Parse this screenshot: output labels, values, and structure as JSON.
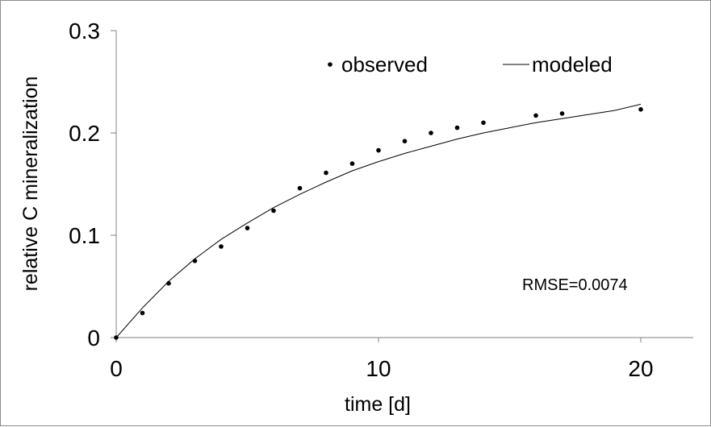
{
  "chart_data": {
    "type": "scatter",
    "xlabel": "time [d]",
    "ylabel": "relative C mineralization",
    "xlim": [
      0,
      22
    ],
    "ylim": [
      0,
      0.3
    ],
    "x_ticks": [
      0,
      10,
      20
    ],
    "x_tick_labels": [
      "0",
      "10",
      "20"
    ],
    "y_ticks": [
      0,
      0.1,
      0.2,
      0.3
    ],
    "y_tick_labels": [
      "0",
      "0.1",
      "0.2",
      "0.3"
    ],
    "grid": false,
    "legend_position": "top-center",
    "annotation": "RMSE=0.0074",
    "colors": {
      "points": "#000000",
      "line": "#000000",
      "axis": "#808080"
    },
    "series": [
      {
        "name": "observed",
        "kind": "scatter",
        "x": [
          0,
          1,
          2,
          3,
          4,
          5,
          6,
          7,
          8,
          9,
          10,
          11,
          12,
          13,
          14,
          16,
          17,
          20
        ],
        "y": [
          0.0,
          0.024,
          0.053,
          0.075,
          0.089,
          0.107,
          0.124,
          0.146,
          0.161,
          0.17,
          0.183,
          0.192,
          0.2,
          0.205,
          0.21,
          0.217,
          0.219,
          0.223
        ]
      },
      {
        "name": "modeled",
        "kind": "line",
        "x": [
          0,
          1,
          2,
          3,
          4,
          5,
          6,
          7,
          8,
          9,
          10,
          11,
          12,
          13,
          14,
          15,
          16,
          17,
          18,
          19,
          20
        ],
        "y": [
          0.0,
          0.029,
          0.055,
          0.077,
          0.096,
          0.112,
          0.127,
          0.14,
          0.152,
          0.163,
          0.172,
          0.18,
          0.187,
          0.194,
          0.2,
          0.205,
          0.21,
          0.214,
          0.218,
          0.222,
          0.228
        ]
      }
    ]
  }
}
